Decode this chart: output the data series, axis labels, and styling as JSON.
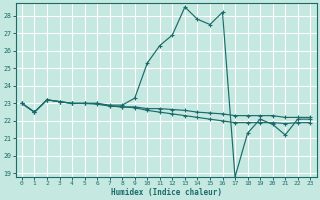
{
  "title": "",
  "xlabel": "Humidex (Indice chaleur)",
  "ylabel": "",
  "bg_color": "#c5e8e0",
  "grid_color": "#ffffff",
  "line_color": "#1a6b6b",
  "xlim": [
    -0.5,
    23.5
  ],
  "ylim": [
    18.8,
    28.7
  ],
  "yticks": [
    19,
    20,
    21,
    22,
    23,
    24,
    25,
    26,
    27,
    28
  ],
  "xticks": [
    0,
    1,
    2,
    3,
    4,
    5,
    6,
    7,
    8,
    9,
    10,
    11,
    12,
    13,
    14,
    15,
    16,
    17,
    18,
    19,
    20,
    21,
    22,
    23
  ],
  "series": [
    {
      "x": [
        0,
        1,
        2,
        3,
        4,
        5,
        6,
        7,
        8,
        9,
        10,
        11,
        12,
        13,
        14,
        15,
        16,
        17,
        18,
        19,
        20,
        21,
        22,
        23
      ],
      "y": [
        23.0,
        22.5,
        23.2,
        23.1,
        23.0,
        23.0,
        23.0,
        22.9,
        22.9,
        23.3,
        25.3,
        26.3,
        26.9,
        28.5,
        27.8,
        27.5,
        28.2,
        18.8,
        21.3,
        22.1,
        21.8,
        21.2,
        22.1,
        22.1
      ]
    },
    {
      "x": [
        0,
        1,
        2,
        3,
        4,
        5,
        6,
        7,
        8,
        9,
        10,
        11,
        12,
        13,
        14,
        15,
        16,
        17,
        18,
        19,
        20,
        21,
        22,
        23
      ],
      "y": [
        23.0,
        22.5,
        23.2,
        23.1,
        23.0,
        23.0,
        23.0,
        22.85,
        22.8,
        22.8,
        22.7,
        22.7,
        22.65,
        22.6,
        22.5,
        22.45,
        22.4,
        22.3,
        22.3,
        22.3,
        22.3,
        22.2,
        22.2,
        22.2
      ]
    },
    {
      "x": [
        0,
        1,
        2,
        3,
        4,
        5,
        6,
        7,
        8,
        9,
        10,
        11,
        12,
        13,
        14,
        15,
        16,
        17,
        18,
        19,
        20,
        21,
        22,
        23
      ],
      "y": [
        23.0,
        22.5,
        23.2,
        23.1,
        23.0,
        23.0,
        22.95,
        22.85,
        22.8,
        22.75,
        22.6,
        22.5,
        22.4,
        22.3,
        22.2,
        22.1,
        22.0,
        21.9,
        21.9,
        21.9,
        21.9,
        21.85,
        21.9,
        21.9
      ]
    }
  ]
}
